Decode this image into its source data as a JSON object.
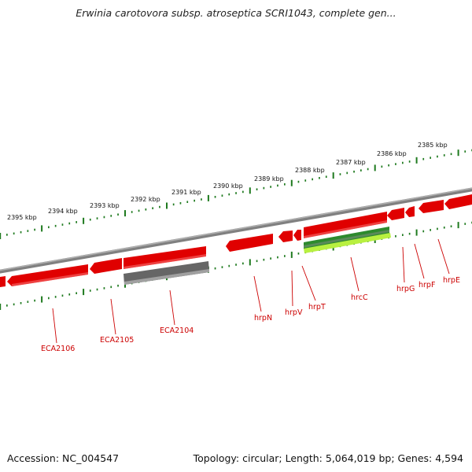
{
  "title": "Erwinia carotovora subsp. atroseptica SCRI1043, complete gen...",
  "footer": {
    "accession_label": "Accession: NC_004547",
    "summary": "Topology: circular; Length: 5,064,019 bp; Genes: 4,594"
  },
  "ruler_kbp": [
    "2395 kbp",
    "2394 kbp",
    "2393 kbp",
    "2392 kbp",
    "2391 kbp",
    "2390 kbp",
    "2389 kbp",
    "2388 kbp",
    "2387 kbp",
    "2386 kbp",
    "2385 kbp"
  ],
  "gene_labels": [
    "ECA2106",
    "ECA2105",
    "ECA2104",
    "hrpN",
    "hrpV",
    "hrpT",
    "hrcC",
    "hrpG",
    "hrpF",
    "hrpE"
  ],
  "colors": {
    "forward_gene": "#e00000",
    "other_gene": "#666666",
    "highlight_dark": "#2d8a2d",
    "highlight_light": "#b8f040",
    "backbone": "#808080",
    "ticks": "#1f7a1f",
    "label": "#cc0000"
  }
}
